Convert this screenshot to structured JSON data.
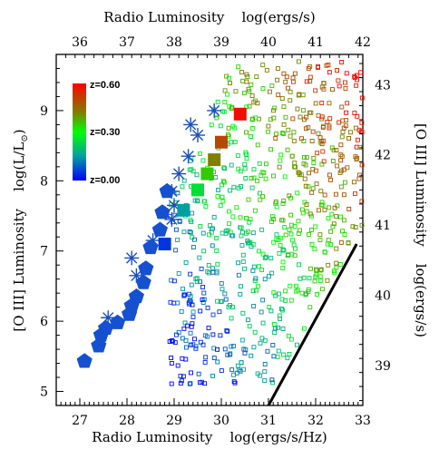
{
  "chart_data": {
    "type": "scatter",
    "title": "",
    "xlabel": "Radio Luminosity    log(ergs/s/Hz)",
    "ylabel": "[O III] Luminosity    log(L/L",
    "ylabel_sun": "⊙",
    "ylabel_close": ")",
    "top_xlabel": "Radio Luminosity    log(ergs/s)",
    "right_ylabel": "[O III] Luminosity    log(ergs/s)",
    "xlim": [
      26.5,
      33
    ],
    "ylim": [
      4.8,
      9.8
    ],
    "top_xlim": [
      35.5,
      42
    ],
    "right_ylim": [
      38.43,
      43.43
    ],
    "x_ticks": [
      "27",
      "28",
      "29",
      "30",
      "31",
      "32",
      "33"
    ],
    "y_ticks": [
      "5",
      "6",
      "7",
      "8",
      "9"
    ],
    "top_ticks": [
      "36",
      "37",
      "38",
      "39",
      "40",
      "41",
      "42"
    ],
    "right_ticks": [
      "39",
      "40",
      "41",
      "42",
      "43"
    ],
    "colorbar": {
      "labels": [
        "z=0.60",
        "z=0.30",
        "z=0.00"
      ],
      "colors": [
        "#ff0000",
        "#7f7f00",
        "#00ff00",
        "#0000ff"
      ]
    },
    "line": {
      "points": [
        [
          31,
          4.8
        ],
        [
          32.87,
          7.1
        ]
      ]
    },
    "squares_big": [
      {
        "x": 28.8,
        "y": 7.1,
        "z": 0.05
      },
      {
        "x": 29.2,
        "y": 7.58,
        "z": 0.15
      },
      {
        "x": 29.5,
        "y": 7.87,
        "z": 0.25
      },
      {
        "x": 29.7,
        "y": 8.1,
        "z": 0.35
      },
      {
        "x": 29.85,
        "y": 8.3,
        "z": 0.42
      },
      {
        "x": 30.0,
        "y": 8.55,
        "z": 0.5
      },
      {
        "x": 30.4,
        "y": 8.95,
        "z": 0.58
      }
    ],
    "pentagons": [
      {
        "x": 27.1,
        "y": 5.43
      },
      {
        "x": 27.4,
        "y": 5.65
      },
      {
        "x": 27.45,
        "y": 5.8
      },
      {
        "x": 27.55,
        "y": 5.9
      },
      {
        "x": 27.8,
        "y": 5.98
      },
      {
        "x": 28.05,
        "y": 6.1
      },
      {
        "x": 28.1,
        "y": 6.22
      },
      {
        "x": 28.2,
        "y": 6.35
      },
      {
        "x": 28.35,
        "y": 6.55
      },
      {
        "x": 28.4,
        "y": 6.75
      },
      {
        "x": 28.5,
        "y": 7.05
      },
      {
        "x": 28.7,
        "y": 7.3
      },
      {
        "x": 28.75,
        "y": 7.55
      },
      {
        "x": 28.85,
        "y": 7.85
      }
    ],
    "asterisks": [
      {
        "x": 27.6,
        "y": 6.05
      },
      {
        "x": 28.2,
        "y": 6.65
      },
      {
        "x": 28.1,
        "y": 6.9
      },
      {
        "x": 28.55,
        "y": 7.15
      },
      {
        "x": 28.95,
        "y": 7.45
      },
      {
        "x": 29.0,
        "y": 7.65
      },
      {
        "x": 28.95,
        "y": 7.85
      },
      {
        "x": 29.1,
        "y": 8.1
      },
      {
        "x": 29.3,
        "y": 8.35
      },
      {
        "x": 29.5,
        "y": 8.65
      },
      {
        "x": 29.85,
        "y": 9.0
      },
      {
        "x": 29.35,
        "y": 8.8
      }
    ],
    "small_squares_note": "approximately 700 small open squares scattered between radio luminosity 28.9 and 33, colored by redshift",
    "small_squares_count": 700
  }
}
